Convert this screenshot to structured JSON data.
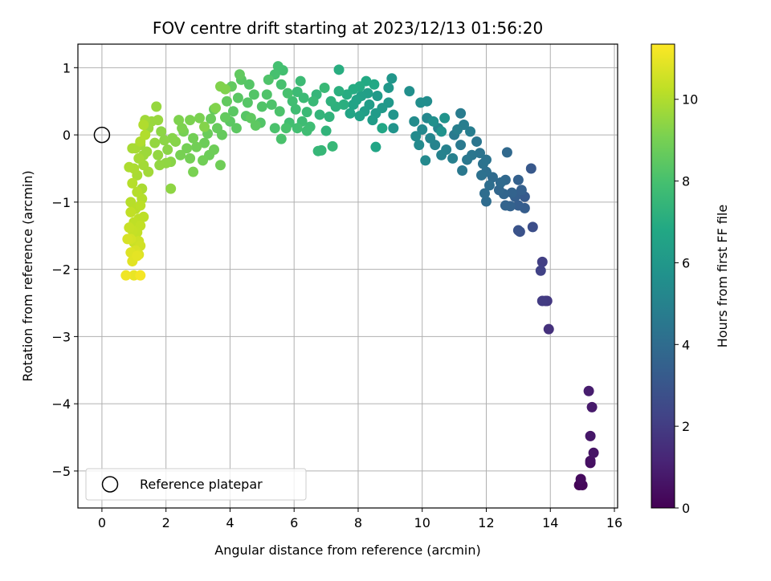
{
  "chart_data": {
    "type": "scatter",
    "title": "FOV centre drift starting at 2023/12/13 01:56:20",
    "xlabel": "Angular distance from reference (arcmin)",
    "ylabel": "Rotation from reference (arcmin)",
    "xlim": [
      -0.75,
      16.1
    ],
    "ylim": [
      -5.55,
      1.35
    ],
    "x_ticks": [
      0,
      2,
      4,
      6,
      8,
      10,
      12,
      14,
      16
    ],
    "y_ticks": [
      1,
      0,
      -1,
      -2,
      -3,
      -4,
      -5
    ],
    "grid": true,
    "colormap": "viridis",
    "colorbar": {
      "label": "Hours from first FF file",
      "range": [
        0,
        11.35
      ],
      "ticks": [
        0,
        2,
        4,
        6,
        8,
        10
      ]
    },
    "reference_point": {
      "x": 0,
      "y": 0,
      "label": "Reference platepar"
    },
    "legend": {
      "position": "lower-left",
      "entries": [
        "Reference platepar"
      ]
    },
    "series": [
      {
        "points": [
          [
            14.9,
            -5.21,
            0.1
          ],
          [
            15.0,
            -5.21,
            0.2
          ],
          [
            14.95,
            -5.12,
            0.3
          ],
          [
            15.25,
            -4.88,
            0.4
          ],
          [
            15.25,
            -4.85,
            0.5
          ],
          [
            15.35,
            -4.73,
            0.6
          ],
          [
            15.25,
            -4.48,
            0.7
          ],
          [
            15.3,
            -4.05,
            0.8
          ],
          [
            15.2,
            -3.81,
            0.9
          ],
          [
            13.95,
            -2.89,
            1.6
          ],
          [
            13.9,
            -2.47,
            1.8
          ],
          [
            13.85,
            -2.47,
            1.9
          ],
          [
            13.75,
            -2.47,
            2.0
          ],
          [
            13.75,
            -1.89,
            2.1
          ],
          [
            13.7,
            -2.02,
            2.2
          ],
          [
            13.45,
            -1.37,
            2.7
          ],
          [
            13.05,
            -1.44,
            2.8
          ],
          [
            13.0,
            -1.42,
            2.9
          ],
          [
            13.4,
            -0.5,
            3.1
          ],
          [
            13.2,
            -0.92,
            3.2
          ],
          [
            13.2,
            -1.09,
            3.3
          ],
          [
            13.0,
            -1.05,
            3.35
          ],
          [
            12.9,
            -0.92,
            3.4
          ],
          [
            13.1,
            -0.82,
            3.45
          ],
          [
            13.0,
            -0.67,
            3.5
          ],
          [
            12.75,
            -1.06,
            3.55
          ],
          [
            12.8,
            -0.86,
            3.6
          ],
          [
            12.6,
            -1.05,
            3.65
          ],
          [
            12.55,
            -0.88,
            3.7
          ],
          [
            12.4,
            -0.82,
            3.75
          ],
          [
            12.6,
            -0.67,
            3.8
          ],
          [
            12.65,
            -0.26,
            3.85
          ],
          [
            12.45,
            -0.71,
            3.9
          ],
          [
            12.2,
            -0.63,
            3.95
          ],
          [
            12.0,
            -0.99,
            4.0
          ],
          [
            11.95,
            -0.87,
            4.05
          ],
          [
            12.1,
            -0.75,
            4.1
          ],
          [
            12.0,
            -0.55,
            4.15
          ],
          [
            11.85,
            -0.6,
            4.2
          ],
          [
            11.9,
            -0.43,
            4.25
          ],
          [
            12.0,
            -0.37,
            4.3
          ],
          [
            11.8,
            -0.27,
            4.35
          ],
          [
            11.7,
            -0.1,
            4.4
          ],
          [
            11.55,
            -0.3,
            4.45
          ],
          [
            11.4,
            -0.37,
            4.5
          ],
          [
            11.25,
            -0.53,
            4.55
          ],
          [
            11.2,
            -0.15,
            4.6
          ],
          [
            11.0,
            0.0,
            4.65
          ],
          [
            11.2,
            0.32,
            4.7
          ],
          [
            11.5,
            0.05,
            4.75
          ],
          [
            11.3,
            0.15,
            4.8
          ],
          [
            11.1,
            0.08,
            4.85
          ],
          [
            10.95,
            -0.35,
            4.9
          ],
          [
            10.75,
            -0.22,
            4.95
          ],
          [
            10.6,
            -0.3,
            5.0
          ],
          [
            10.4,
            -0.15,
            5.05
          ],
          [
            10.5,
            0.1,
            5.1
          ],
          [
            10.25,
            -0.05,
            5.15
          ],
          [
            10.15,
            0.25,
            5.2
          ],
          [
            10.0,
            0.08,
            5.25
          ],
          [
            10.1,
            -0.38,
            5.3
          ],
          [
            9.9,
            -0.15,
            5.35
          ],
          [
            9.8,
            -0.02,
            5.4
          ],
          [
            9.75,
            0.2,
            5.45
          ],
          [
            10.15,
            0.5,
            5.5
          ],
          [
            9.95,
            0.48,
            5.55
          ],
          [
            9.6,
            0.65,
            5.6
          ],
          [
            10.35,
            0.2,
            5.65
          ],
          [
            10.6,
            0.05,
            5.7
          ],
          [
            10.7,
            0.25,
            5.75
          ],
          [
            9.1,
            0.1,
            5.8
          ],
          [
            9.1,
            0.3,
            5.85
          ],
          [
            9.05,
            0.84,
            5.9
          ],
          [
            8.95,
            0.7,
            5.95
          ],
          [
            8.95,
            0.48,
            6.0
          ],
          [
            8.75,
            0.4,
            6.05
          ],
          [
            8.6,
            0.58,
            6.1
          ],
          [
            8.55,
            0.32,
            6.15
          ],
          [
            8.45,
            0.22,
            6.2
          ],
          [
            8.35,
            0.45,
            6.25
          ],
          [
            8.2,
            0.35,
            6.3
          ],
          [
            8.3,
            0.62,
            6.35
          ],
          [
            8.1,
            0.58,
            6.4
          ],
          [
            8.05,
            0.28,
            6.45
          ],
          [
            7.95,
            0.52,
            6.5
          ],
          [
            7.85,
            0.45,
            6.55
          ],
          [
            7.75,
            0.32,
            6.6
          ],
          [
            8.55,
            -0.18,
            6.65
          ],
          [
            8.75,
            0.1,
            6.7
          ],
          [
            8.5,
            0.75,
            6.8
          ],
          [
            8.25,
            0.8,
            6.85
          ],
          [
            8.05,
            0.72,
            6.9
          ],
          [
            7.85,
            0.68,
            6.95
          ],
          [
            7.65,
            0.6,
            7.0
          ],
          [
            7.4,
            0.97,
            7.05
          ],
          [
            7.55,
            0.45,
            7.1
          ],
          [
            7.4,
            0.65,
            7.15
          ],
          [
            7.3,
            0.42,
            7.2
          ],
          [
            7.15,
            0.5,
            7.25
          ],
          [
            7.1,
            0.27,
            7.3
          ],
          [
            7.0,
            0.06,
            7.35
          ],
          [
            6.8,
            0.3,
            7.4
          ],
          [
            6.7,
            0.6,
            7.45
          ],
          [
            6.75,
            -0.24,
            7.5
          ],
          [
            6.85,
            -0.23,
            7.52
          ],
          [
            7.2,
            -0.17,
            7.55
          ],
          [
            6.95,
            0.7,
            7.6
          ],
          [
            6.6,
            0.5,
            7.62
          ],
          [
            6.4,
            0.34,
            7.65
          ],
          [
            6.3,
            0.55,
            7.68
          ],
          [
            6.2,
            0.8,
            7.7
          ],
          [
            6.1,
            0.64,
            7.72
          ],
          [
            6.25,
            0.2,
            7.75
          ],
          [
            6.5,
            0.12,
            7.78
          ],
          [
            6.4,
            0.06,
            7.8
          ],
          [
            6.05,
            0.38,
            7.82
          ],
          [
            5.95,
            0.5,
            7.85
          ],
          [
            5.85,
            0.18,
            7.88
          ],
          [
            6.1,
            0.1,
            7.9
          ],
          [
            5.65,
            0.96,
            7.92
          ],
          [
            5.5,
            1.02,
            7.95
          ],
          [
            5.4,
            0.9,
            7.98
          ],
          [
            5.6,
            0.75,
            8.0
          ],
          [
            5.8,
            0.62,
            8.02
          ],
          [
            5.75,
            0.1,
            8.05
          ],
          [
            5.6,
            -0.06,
            8.08
          ],
          [
            5.4,
            0.1,
            8.1
          ],
          [
            5.55,
            0.35,
            8.12
          ],
          [
            5.3,
            0.45,
            8.15
          ],
          [
            5.2,
            0.82,
            8.18
          ],
          [
            5.15,
            0.6,
            8.2
          ],
          [
            5.0,
            0.42,
            8.22
          ],
          [
            4.95,
            0.18,
            8.25
          ],
          [
            4.75,
            0.6,
            8.28
          ],
          [
            4.6,
            0.75,
            8.3
          ],
          [
            4.55,
            0.48,
            8.32
          ],
          [
            4.5,
            0.28,
            8.35
          ],
          [
            4.35,
            0.82,
            8.38
          ],
          [
            4.25,
            0.55,
            8.4
          ],
          [
            4.1,
            0.35,
            8.42
          ],
          [
            4.0,
            0.2,
            8.45
          ],
          [
            4.2,
            0.1,
            8.48
          ],
          [
            4.8,
            0.14,
            8.5
          ],
          [
            4.65,
            0.25,
            8.52
          ],
          [
            4.3,
            0.9,
            8.55
          ],
          [
            4.05,
            0.72,
            8.58
          ],
          [
            3.9,
            0.5,
            8.6
          ],
          [
            3.85,
            0.26,
            8.62
          ],
          [
            3.75,
            0.0,
            8.65
          ],
          [
            3.6,
            0.1,
            8.68
          ],
          [
            3.5,
            0.38,
            8.7
          ],
          [
            3.4,
            0.24,
            8.72
          ],
          [
            3.3,
            0.02,
            8.75
          ],
          [
            3.2,
            -0.12,
            8.78
          ],
          [
            3.35,
            -0.3,
            8.8
          ],
          [
            3.5,
            -0.22,
            8.82
          ],
          [
            3.7,
            -0.45,
            8.85
          ],
          [
            3.15,
            -0.38,
            8.88
          ],
          [
            2.95,
            -0.18,
            8.9
          ],
          [
            2.85,
            -0.05,
            8.92
          ],
          [
            2.75,
            -0.35,
            8.95
          ],
          [
            2.65,
            -0.2,
            8.98
          ],
          [
            2.55,
            0.05,
            9.0
          ],
          [
            2.45,
            -0.3,
            9.02
          ],
          [
            2.85,
            -0.55,
            9.05
          ],
          [
            3.05,
            0.25,
            9.08
          ],
          [
            2.75,
            0.22,
            9.1
          ],
          [
            2.5,
            0.1,
            9.12
          ],
          [
            2.4,
            0.22,
            9.15
          ],
          [
            3.85,
            0.68,
            9.18
          ],
          [
            3.7,
            0.72,
            9.2
          ],
          [
            3.55,
            0.4,
            9.22
          ],
          [
            3.2,
            0.12,
            9.25
          ],
          [
            2.3,
            -0.1,
            9.28
          ],
          [
            2.2,
            -0.05,
            9.3
          ],
          [
            2.15,
            -0.4,
            9.32
          ],
          [
            2.05,
            -0.22,
            9.35
          ],
          [
            1.95,
            -0.08,
            9.38
          ],
          [
            1.85,
            0.05,
            9.4
          ],
          [
            2.15,
            -0.8,
            9.42
          ],
          [
            2.0,
            -0.42,
            9.45
          ],
          [
            1.8,
            -0.45,
            9.48
          ],
          [
            1.75,
            -0.3,
            9.5
          ],
          [
            1.65,
            -0.12,
            9.52
          ],
          [
            1.7,
            0.42,
            9.55
          ],
          [
            1.75,
            0.22,
            9.58
          ],
          [
            1.55,
            0.2,
            9.6
          ],
          [
            1.45,
            0.1,
            9.62
          ],
          [
            1.4,
            -0.25,
            9.65
          ],
          [
            1.3,
            -0.3,
            9.68
          ],
          [
            1.2,
            -0.15,
            9.7
          ],
          [
            1.35,
            0.22,
            9.72
          ],
          [
            1.45,
            -0.55,
            9.75
          ],
          [
            1.3,
            -0.45,
            9.78
          ],
          [
            1.15,
            -0.35,
            9.8
          ],
          [
            1.05,
            -0.2,
            9.82
          ],
          [
            0.95,
            -0.2,
            9.85
          ],
          [
            1.1,
            -0.6,
            9.88
          ],
          [
            1.25,
            -0.8,
            9.9
          ],
          [
            1.0,
            -0.5,
            9.92
          ],
          [
            0.85,
            -0.48,
            9.95
          ],
          [
            1.2,
            -0.1,
            9.98
          ],
          [
            1.3,
            0.15,
            10.0
          ],
          [
            1.35,
            0.0,
            10.02
          ],
          [
            1.25,
            -0.95,
            10.05
          ],
          [
            1.1,
            -0.85,
            10.08
          ],
          [
            0.95,
            -0.72,
            10.1
          ],
          [
            0.9,
            -1.0,
            10.12
          ],
          [
            1.05,
            -1.1,
            10.15
          ],
          [
            1.2,
            -1.05,
            10.18
          ],
          [
            1.3,
            -1.22,
            10.2
          ],
          [
            1.15,
            -1.25,
            10.22
          ],
          [
            1.0,
            -1.3,
            10.25
          ],
          [
            0.9,
            -1.15,
            10.28
          ],
          [
            1.2,
            -1.35,
            10.3
          ],
          [
            1.1,
            -1.45,
            10.32
          ],
          [
            0.95,
            -1.42,
            10.35
          ],
          [
            0.85,
            -1.38,
            10.4
          ],
          [
            1.0,
            -1.6,
            10.45
          ],
          [
            1.15,
            -1.58,
            10.5
          ],
          [
            1.2,
            -1.65,
            10.55
          ],
          [
            0.9,
            -1.55,
            10.6
          ],
          [
            0.8,
            -1.55,
            10.65
          ],
          [
            1.05,
            -1.72,
            10.7
          ],
          [
            1.15,
            -1.78,
            10.75
          ],
          [
            0.9,
            -1.75,
            10.8
          ],
          [
            0.95,
            -1.88,
            10.85
          ],
          [
            1.1,
            -1.8,
            10.9
          ],
          [
            1.0,
            -2.09,
            11.0
          ],
          [
            0.75,
            -2.09,
            11.1
          ],
          [
            1.2,
            -2.09,
            11.2
          ]
        ]
      }
    ]
  }
}
